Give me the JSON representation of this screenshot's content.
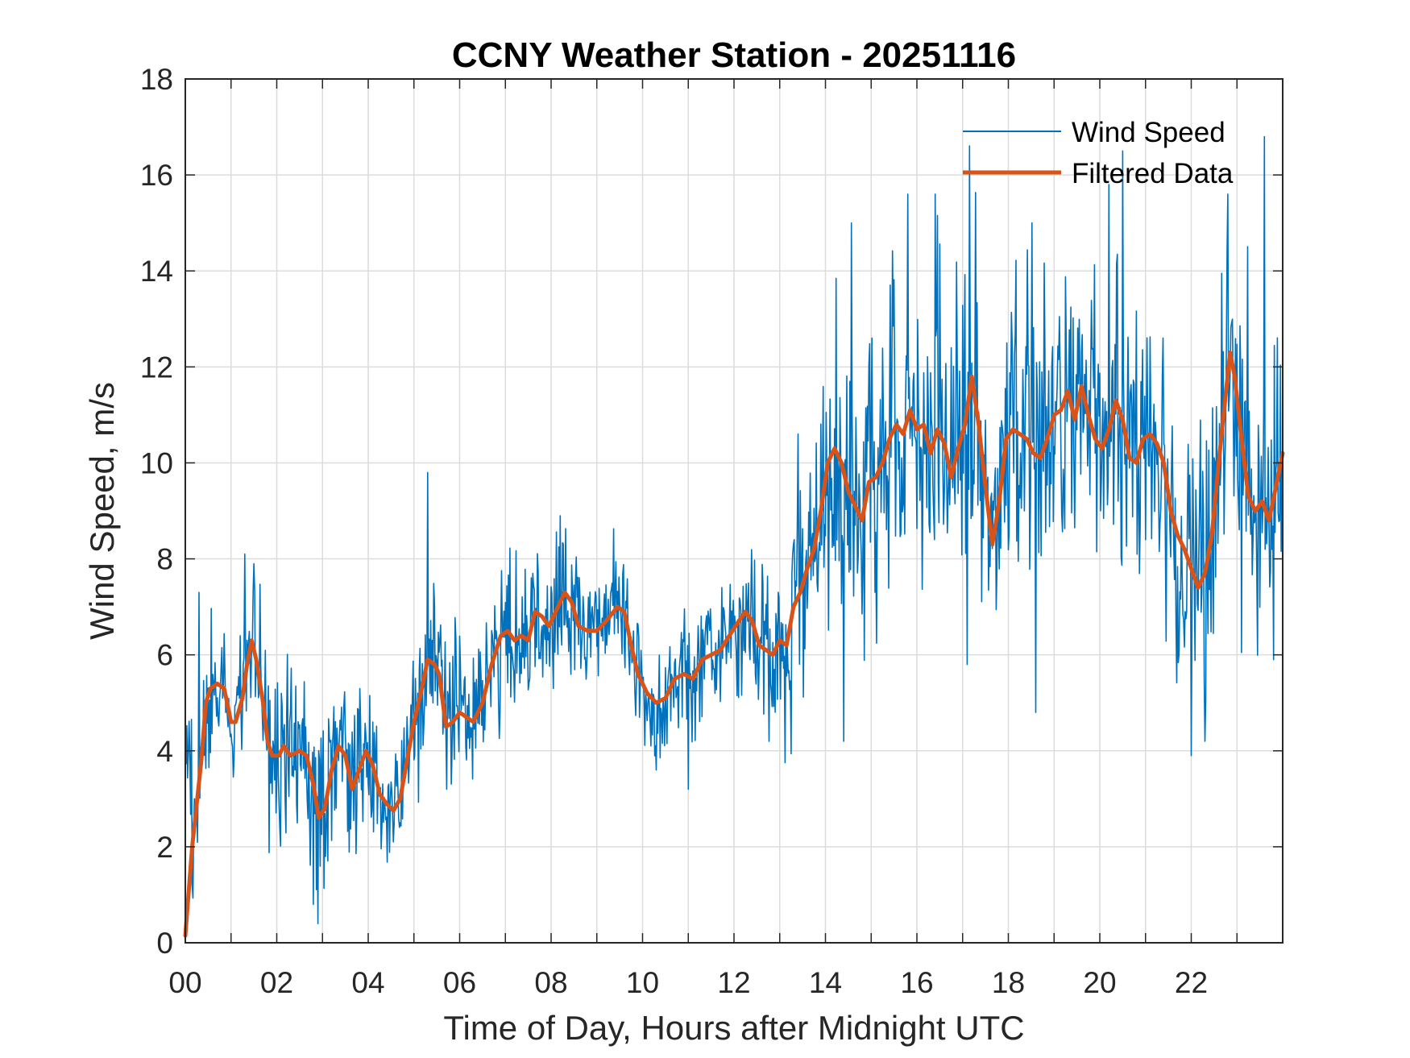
{
  "chart_data": {
    "type": "line",
    "title": "CCNY Weather Station - 20251116",
    "xlabel": "Time of Day, Hours after Midnight UTC",
    "ylabel": "Wind Speed, m/s",
    "xlim": [
      0,
      24
    ],
    "ylim": [
      0,
      18
    ],
    "xticks": [
      0,
      2,
      4,
      6,
      8,
      10,
      12,
      14,
      16,
      18,
      20,
      22
    ],
    "xtick_labels": [
      "00",
      "02",
      "04",
      "06",
      "08",
      "10",
      "12",
      "14",
      "16",
      "18",
      "20",
      "22"
    ],
    "yticks": [
      0,
      2,
      4,
      6,
      8,
      10,
      12,
      14,
      16,
      18
    ],
    "ytick_labels": [
      "0",
      "2",
      "4",
      "6",
      "8",
      "10",
      "12",
      "14",
      "16",
      "18"
    ],
    "grid": true,
    "legend_position": "top-right",
    "series": [
      {
        "name": "Wind Speed",
        "color": "#0072BD",
        "noise_amplitude": [
          [
            0,
            1.2
          ],
          [
            2.8,
            1.7
          ],
          [
            4.5,
            1.2
          ],
          [
            8,
            1.3
          ],
          [
            10,
            1.1
          ],
          [
            12,
            1.0
          ],
          [
            13.5,
            2.2
          ],
          [
            15,
            2.8
          ],
          [
            20,
            2.6
          ],
          [
            22,
            2.6
          ],
          [
            24,
            2.4
          ]
        ],
        "spikes": [
          [
            0.2,
            3.0
          ],
          [
            0.3,
            7.3
          ],
          [
            1.3,
            8.1
          ],
          [
            1.5,
            7.9
          ],
          [
            2.8,
            0.8
          ],
          [
            2.9,
            0.4
          ],
          [
            5.3,
            9.8
          ],
          [
            8.2,
            8.9
          ],
          [
            10.3,
            3.6
          ],
          [
            11.0,
            3.2
          ],
          [
            13.4,
            10.6
          ],
          [
            14.4,
            4.2
          ],
          [
            15.8,
            15.6
          ],
          [
            16.4,
            15.6
          ],
          [
            17.1,
            5.8
          ],
          [
            18.6,
            4.8
          ],
          [
            20.2,
            15.8
          ],
          [
            20.5,
            16.5
          ],
          [
            22.0,
            3.9
          ],
          [
            22.3,
            4.2
          ],
          [
            22.8,
            15.6
          ],
          [
            23.6,
            16.8
          ],
          [
            23.8,
            5.9
          ]
        ]
      },
      {
        "name": "Filtered Data",
        "color": "#D95319",
        "points": [
          [
            0.0,
            0.15
          ],
          [
            0.15,
            2.0
          ],
          [
            0.35,
            3.8
          ],
          [
            0.45,
            5.0
          ],
          [
            0.55,
            5.3
          ],
          [
            0.7,
            5.4
          ],
          [
            0.85,
            5.3
          ],
          [
            1.0,
            4.6
          ],
          [
            1.1,
            4.6
          ],
          [
            1.25,
            5.1
          ],
          [
            1.35,
            5.8
          ],
          [
            1.45,
            6.3
          ],
          [
            1.55,
            5.9
          ],
          [
            1.7,
            5.0
          ],
          [
            1.8,
            4.2
          ],
          [
            1.9,
            3.9
          ],
          [
            2.05,
            3.9
          ],
          [
            2.15,
            4.1
          ],
          [
            2.3,
            3.9
          ],
          [
            2.5,
            4.0
          ],
          [
            2.65,
            3.9
          ],
          [
            2.8,
            3.3
          ],
          [
            2.92,
            2.6
          ],
          [
            3.05,
            2.8
          ],
          [
            3.2,
            3.6
          ],
          [
            3.35,
            4.1
          ],
          [
            3.5,
            3.9
          ],
          [
            3.65,
            3.2
          ],
          [
            3.8,
            3.6
          ],
          [
            3.95,
            4.0
          ],
          [
            4.1,
            3.7
          ],
          [
            4.25,
            3.1
          ],
          [
            4.4,
            2.9
          ],
          [
            4.55,
            2.75
          ],
          [
            4.7,
            3.0
          ],
          [
            4.85,
            3.8
          ],
          [
            5.0,
            4.6
          ],
          [
            5.15,
            5.2
          ],
          [
            5.3,
            5.9
          ],
          [
            5.45,
            5.8
          ],
          [
            5.55,
            5.6
          ],
          [
            5.7,
            4.5
          ],
          [
            5.85,
            4.6
          ],
          [
            6.0,
            4.8
          ],
          [
            6.15,
            4.7
          ],
          [
            6.3,
            4.6
          ],
          [
            6.5,
            5.0
          ],
          [
            6.7,
            5.8
          ],
          [
            6.9,
            6.4
          ],
          [
            7.05,
            6.5
          ],
          [
            7.2,
            6.3
          ],
          [
            7.35,
            6.4
          ],
          [
            7.5,
            6.3
          ],
          [
            7.65,
            6.9
          ],
          [
            7.8,
            6.8
          ],
          [
            7.95,
            6.6
          ],
          [
            8.1,
            6.9
          ],
          [
            8.3,
            7.3
          ],
          [
            8.45,
            7.1
          ],
          [
            8.6,
            6.6
          ],
          [
            8.8,
            6.5
          ],
          [
            9.0,
            6.5
          ],
          [
            9.2,
            6.7
          ],
          [
            9.45,
            7.0
          ],
          [
            9.6,
            6.9
          ],
          [
            9.75,
            6.2
          ],
          [
            9.9,
            5.6
          ],
          [
            10.1,
            5.2
          ],
          [
            10.3,
            5.0
          ],
          [
            10.5,
            5.1
          ],
          [
            10.7,
            5.5
          ],
          [
            10.9,
            5.6
          ],
          [
            11.1,
            5.5
          ],
          [
            11.3,
            5.9
          ],
          [
            11.5,
            6.0
          ],
          [
            11.7,
            6.1
          ],
          [
            11.9,
            6.4
          ],
          [
            12.1,
            6.7
          ],
          [
            12.25,
            6.9
          ],
          [
            12.4,
            6.7
          ],
          [
            12.55,
            6.2
          ],
          [
            12.7,
            6.1
          ],
          [
            12.85,
            6.0
          ],
          [
            13.0,
            6.3
          ],
          [
            13.15,
            6.2
          ],
          [
            13.3,
            7.0
          ],
          [
            13.45,
            7.3
          ],
          [
            13.6,
            7.8
          ],
          [
            13.75,
            8.2
          ],
          [
            13.9,
            9.0
          ],
          [
            14.05,
            10.0
          ],
          [
            14.2,
            10.3
          ],
          [
            14.35,
            10.0
          ],
          [
            14.5,
            9.4
          ],
          [
            14.65,
            9.1
          ],
          [
            14.8,
            8.8
          ],
          [
            14.95,
            9.6
          ],
          [
            15.1,
            9.7
          ],
          [
            15.25,
            10.0
          ],
          [
            15.4,
            10.5
          ],
          [
            15.55,
            10.8
          ],
          [
            15.7,
            10.6
          ],
          [
            15.85,
            11.1
          ],
          [
            16.0,
            10.7
          ],
          [
            16.15,
            10.8
          ],
          [
            16.3,
            10.2
          ],
          [
            16.45,
            10.7
          ],
          [
            16.6,
            10.4
          ],
          [
            16.75,
            9.7
          ],
          [
            16.9,
            10.3
          ],
          [
            17.05,
            10.8
          ],
          [
            17.2,
            11.8
          ],
          [
            17.35,
            10.8
          ],
          [
            17.5,
            9.5
          ],
          [
            17.65,
            8.3
          ],
          [
            17.8,
            9.2
          ],
          [
            17.95,
            10.5
          ],
          [
            18.1,
            10.7
          ],
          [
            18.25,
            10.6
          ],
          [
            18.4,
            10.5
          ],
          [
            18.55,
            10.2
          ],
          [
            18.7,
            10.1
          ],
          [
            18.85,
            10.5
          ],
          [
            19.0,
            11.0
          ],
          [
            19.15,
            11.1
          ],
          [
            19.3,
            11.5
          ],
          [
            19.45,
            10.9
          ],
          [
            19.6,
            11.6
          ],
          [
            19.75,
            11.0
          ],
          [
            19.9,
            10.5
          ],
          [
            20.05,
            10.3
          ],
          [
            20.2,
            10.7
          ],
          [
            20.35,
            11.3
          ],
          [
            20.5,
            10.9
          ],
          [
            20.65,
            10.1
          ],
          [
            20.8,
            10.0
          ],
          [
            20.95,
            10.5
          ],
          [
            21.1,
            10.6
          ],
          [
            21.25,
            10.4
          ],
          [
            21.4,
            10.0
          ],
          [
            21.55,
            9.0
          ],
          [
            21.7,
            8.5
          ],
          [
            21.85,
            8.2
          ],
          [
            22.0,
            7.8
          ],
          [
            22.15,
            7.4
          ],
          [
            22.3,
            7.7
          ],
          [
            22.45,
            8.5
          ],
          [
            22.6,
            10.0
          ],
          [
            22.75,
            11.4
          ],
          [
            22.85,
            12.3
          ],
          [
            22.95,
            11.8
          ],
          [
            23.1,
            10.5
          ],
          [
            23.25,
            9.3
          ],
          [
            23.4,
            9.0
          ],
          [
            23.55,
            9.2
          ],
          [
            23.7,
            8.8
          ],
          [
            23.85,
            9.5
          ],
          [
            24.0,
            10.2
          ]
        ]
      }
    ]
  }
}
